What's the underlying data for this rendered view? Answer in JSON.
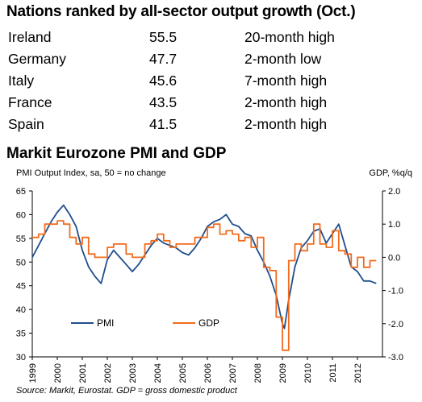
{
  "ranking": {
    "title": "Nations ranked by all-sector output growth (Oct.)",
    "rows": [
      {
        "country": "Ireland",
        "value": "55.5",
        "note": "20-month high"
      },
      {
        "country": "Germany",
        "value": "47.7",
        "note": "2-month low"
      },
      {
        "country": "Italy",
        "value": "45.6",
        "note": "7-month high"
      },
      {
        "country": "France",
        "value": "43.5",
        "note": "2-month high"
      },
      {
        "country": "Spain",
        "value": "41.5",
        "note": "2-month high"
      }
    ]
  },
  "source": "Source: Markit, Eurostat. GDP = gross domestic product",
  "colors": {
    "pmi": "#1f4e8c",
    "gdp": "#f26b1d"
  },
  "chart_data": {
    "type": "line",
    "title": "Markit Eurozone PMI and GDP",
    "y_left_label": "PMI Output Index, sa, 50 = no change",
    "y_right_label": "GDP, %q/q",
    "y_left_range": [
      30,
      65
    ],
    "y_right_range": [
      -3.0,
      2.0
    ],
    "y_left_ticks": [
      "30",
      "35",
      "40",
      "45",
      "50",
      "55",
      "60",
      "65"
    ],
    "y_right_ticks": [
      "-3.0",
      "-2.0",
      "-1.0",
      "0.0",
      "1.0",
      "2.0"
    ],
    "x_ticks": [
      "1999",
      "2000",
      "2001",
      "2002",
      "2003",
      "2004",
      "2005",
      "2006",
      "2007",
      "2008",
      "2009",
      "2010",
      "2011",
      "2012"
    ],
    "x_range": [
      1999.0,
      2013.0
    ],
    "grid": false,
    "legend": "bottom-left",
    "series": [
      {
        "name": "PMI",
        "axis": "left",
        "x": [
          1999.0,
          1999.25,
          1999.5,
          1999.75,
          2000.0,
          2000.25,
          2000.5,
          2000.75,
          2001.0,
          2001.25,
          2001.5,
          2001.75,
          2002.0,
          2002.25,
          2002.5,
          2002.75,
          2003.0,
          2003.25,
          2003.5,
          2003.75,
          2004.0,
          2004.25,
          2004.5,
          2004.75,
          2005.0,
          2005.25,
          2005.5,
          2005.75,
          2006.0,
          2006.25,
          2006.5,
          2006.75,
          2007.0,
          2007.25,
          2007.5,
          2007.75,
          2008.0,
          2008.25,
          2008.5,
          2008.75,
          2009.0,
          2009.08,
          2009.25,
          2009.5,
          2009.75,
          2010.0,
          2010.25,
          2010.5,
          2010.75,
          2011.0,
          2011.25,
          2011.5,
          2011.75,
          2012.0,
          2012.25,
          2012.5,
          2012.75
        ],
        "values": [
          51.0,
          53.5,
          56.0,
          58.5,
          60.5,
          62.0,
          60.0,
          57.5,
          52.5,
          49.0,
          47.0,
          45.5,
          50.5,
          52.5,
          51.0,
          49.5,
          48.0,
          49.5,
          51.5,
          53.5,
          55.0,
          54.0,
          53.5,
          53.0,
          52.0,
          51.5,
          53.0,
          55.0,
          57.5,
          58.5,
          59.0,
          60.0,
          58.0,
          57.5,
          56.0,
          55.5,
          52.5,
          50.0,
          47.0,
          43.0,
          37.0,
          36.0,
          42.0,
          49.0,
          53.0,
          54.5,
          56.5,
          57.0,
          54.0,
          56.0,
          58.0,
          53.5,
          49.0,
          48.0,
          46.0,
          46.0,
          45.5
        ]
      },
      {
        "name": "GDP",
        "axis": "right",
        "x": [
          1999.0,
          1999.25,
          1999.5,
          1999.75,
          2000.0,
          2000.25,
          2000.5,
          2000.75,
          2001.0,
          2001.25,
          2001.5,
          2001.75,
          2002.0,
          2002.25,
          2002.5,
          2002.75,
          2003.0,
          2003.25,
          2003.5,
          2003.75,
          2004.0,
          2004.25,
          2004.5,
          2004.75,
          2005.0,
          2005.25,
          2005.5,
          2005.75,
          2006.0,
          2006.25,
          2006.5,
          2006.75,
          2007.0,
          2007.25,
          2007.5,
          2007.75,
          2008.0,
          2008.25,
          2008.5,
          2008.75,
          2009.0,
          2009.25,
          2009.5,
          2009.75,
          2010.0,
          2010.25,
          2010.5,
          2010.75,
          2011.0,
          2011.25,
          2011.5,
          2011.75,
          2012.0,
          2012.25,
          2012.5
        ],
        "values": [
          0.6,
          0.7,
          1.0,
          1.0,
          1.1,
          1.0,
          0.6,
          0.4,
          0.6,
          0.1,
          0.0,
          0.0,
          0.3,
          0.4,
          0.4,
          0.1,
          0.0,
          0.0,
          0.4,
          0.5,
          0.7,
          0.5,
          0.3,
          0.4,
          0.4,
          0.4,
          0.6,
          0.6,
          0.9,
          1.0,
          0.7,
          0.8,
          0.7,
          0.5,
          0.6,
          0.3,
          0.6,
          -0.3,
          -0.4,
          -1.8,
          -2.8,
          -0.1,
          0.4,
          0.2,
          0.4,
          1.0,
          0.4,
          0.3,
          0.8,
          0.2,
          0.1,
          -0.3,
          0.0,
          -0.3,
          -0.1
        ]
      }
    ]
  }
}
